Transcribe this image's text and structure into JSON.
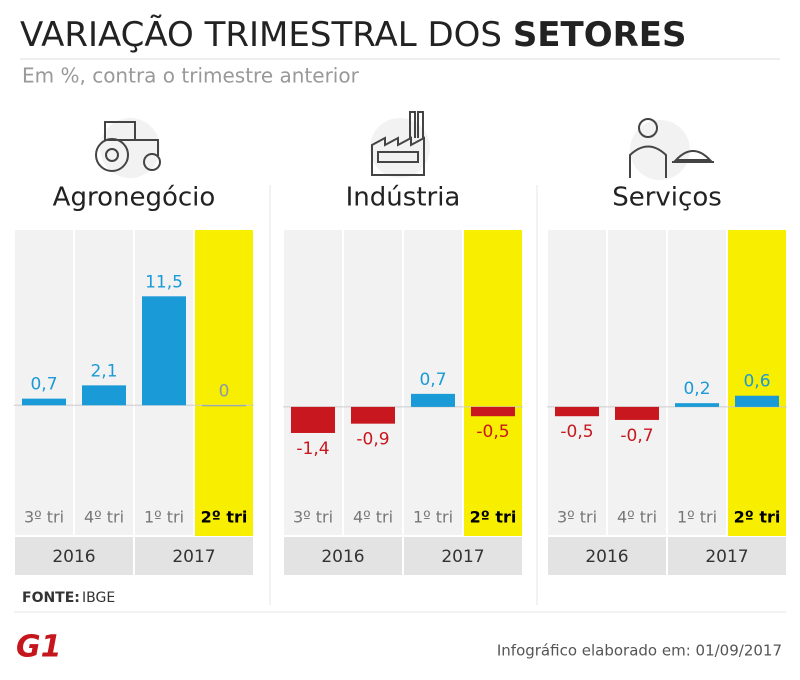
{
  "header": {
    "title": "VARIAÇÃO TRIMESTRAL DOS",
    "title_bold": "SETORES",
    "subtitle": "Em %, contra o trimestre anterior"
  },
  "chart_data": [
    {
      "type": "bar",
      "title": "Agronegócio",
      "categories": [
        "3º tri",
        "4º tri",
        "1º tri",
        "2º tri"
      ],
      "years": [
        "2016",
        "2017"
      ],
      "values": [
        0.7,
        2.1,
        11.5,
        0
      ],
      "value_labels": [
        "0,7",
        "2,1",
        "11,5",
        "0"
      ],
      "ylim": [
        -10,
        18.5
      ],
      "color_positive": "#1a9ad6",
      "color_negative": "#c8171e",
      "highlight": 3,
      "highlight_color": "#f7ee00"
    },
    {
      "type": "bar",
      "title": "Indústria",
      "categories": [
        "3º tri",
        "4º tri",
        "1º tri",
        "2º tri"
      ],
      "years": [
        "2016",
        "2017"
      ],
      "values": [
        -1.4,
        -0.9,
        0.7,
        -0.5
      ],
      "value_labels": [
        "-1,4",
        "-0,9",
        "0,7",
        "-0,5"
      ],
      "ylim": [
        -5,
        9.5
      ],
      "color_positive": "#1a9ad6",
      "color_negative": "#c8171e",
      "highlight": 3,
      "highlight_color": "#f7ee00"
    },
    {
      "type": "bar",
      "title": "Serviços",
      "categories": [
        "3º tri",
        "4º tri",
        "1º tri",
        "2º tri"
      ],
      "years": [
        "2016",
        "2017"
      ],
      "values": [
        -0.5,
        -0.7,
        0.2,
        0.6
      ],
      "value_labels": [
        "-0,5",
        "-0,7",
        "0,2",
        "0,6"
      ],
      "ylim": [
        -5,
        9.5
      ],
      "color_positive": "#1a9ad6",
      "color_negative": "#c8171e",
      "highlight": 3,
      "highlight_color": "#f7ee00"
    }
  ],
  "footer": {
    "source_label": "FONTE:",
    "source": "IBGE",
    "logo": "G1",
    "credit": "Infográfico elaborado em: 01/09/2017"
  }
}
